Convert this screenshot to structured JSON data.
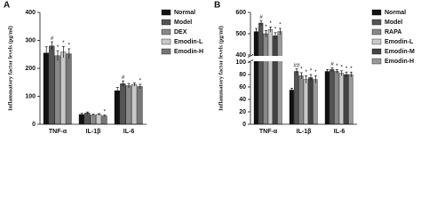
{
  "chart_data": [
    {
      "type": "bar",
      "panel_label": "A",
      "y_label": "Inflammatory factor levels (pg/ml)",
      "categories": [
        "TNF-α",
        "IL-1β",
        "IL-6"
      ],
      "ylim": [
        0,
        400
      ],
      "yticks": [
        0,
        100,
        200,
        300,
        400
      ],
      "series": [
        {
          "name": "Normal",
          "color": "#111111",
          "values": [
            255,
            35,
            120
          ],
          "errors": [
            22,
            4,
            12
          ],
          "markers": [
            null,
            null,
            null
          ]
        },
        {
          "name": "Model",
          "color": "#555555",
          "values": [
            280,
            40,
            145
          ],
          "errors": [
            15,
            4,
            10
          ],
          "markers": [
            "#",
            null,
            "#"
          ]
        },
        {
          "name": "DEX",
          "color": "#888888",
          "values": [
            245,
            33,
            138
          ],
          "errors": [
            18,
            3,
            8
          ],
          "markers": [
            "*",
            null,
            null
          ]
        },
        {
          "name": "Emodin-L",
          "color": "#c8c8c8",
          "values": [
            258,
            35,
            142
          ],
          "errors": [
            20,
            3,
            6
          ],
          "markers": [
            "*",
            null,
            null
          ]
        },
        {
          "name": "Emodin-H",
          "color": "#777777",
          "values": [
            252,
            30,
            135
          ],
          "errors": [
            18,
            3,
            8
          ],
          "markers": [
            "*",
            "*",
            "*"
          ]
        }
      ]
    },
    {
      "type": "bar",
      "panel_label": "B",
      "y_label": "Inflammatory factor levels (pg/ml)",
      "categories": [
        "TNF-α",
        "IL-1β",
        "IL-6"
      ],
      "ylim": [
        0,
        600
      ],
      "ybreak": [
        100,
        400
      ],
      "yticks": [
        0,
        20,
        40,
        60,
        80,
        100,
        400,
        500,
        600
      ],
      "series": [
        {
          "name": "Normal",
          "color": "#111111",
          "values": [
            510,
            55,
            85
          ],
          "errors": [
            15,
            3,
            3
          ],
          "markers": [
            null,
            null,
            null
          ]
        },
        {
          "name": "Model",
          "color": "#555555",
          "values": [
            550,
            85,
            88
          ],
          "errors": [
            12,
            4,
            3
          ],
          "markers": [
            "#",
            "##",
            "#"
          ]
        },
        {
          "name": "RAPA",
          "color": "#888888",
          "values": [
            500,
            78,
            85
          ],
          "errors": [
            15,
            5,
            3
          ],
          "markers": [
            "*",
            "*",
            "*"
          ]
        },
        {
          "name": "Emodin-L",
          "color": "#c8c8c8",
          "values": [
            520,
            72,
            82
          ],
          "errors": [
            12,
            6,
            4
          ],
          "markers": [
            "*",
            "*",
            "*"
          ]
        },
        {
          "name": "Emodin-M",
          "color": "#444444",
          "values": [
            490,
            75,
            80
          ],
          "errors": [
            15,
            5,
            4
          ],
          "markers": [
            "*",
            "*",
            "*"
          ]
        },
        {
          "name": "Emodin-H",
          "color": "#999999",
          "values": [
            510,
            72,
            80
          ],
          "errors": [
            15,
            6,
            4
          ],
          "markers": [
            "*",
            "*",
            "*"
          ]
        }
      ]
    }
  ]
}
